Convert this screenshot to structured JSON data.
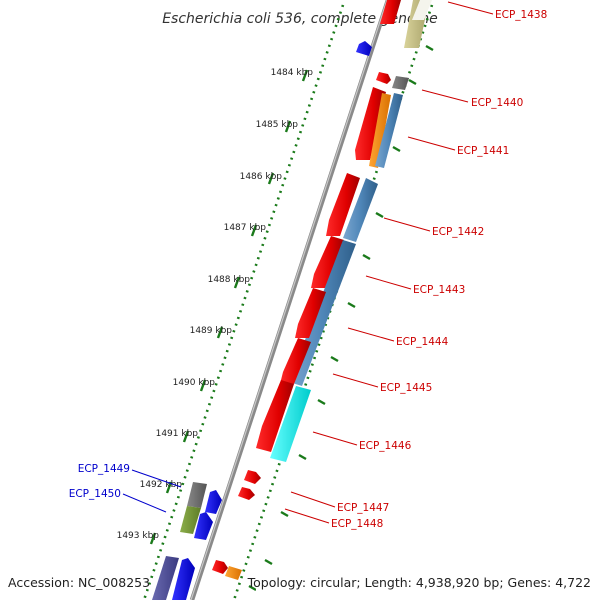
{
  "title": "Escherichia coli 536, complete genome",
  "accession": "Accession: NC_008253",
  "topology": "Topology: circular; Length: 4,938,920 bp; Genes: 4,722",
  "colors": {
    "label_red": "#cc0000",
    "label_blue": "#0000cc",
    "tick_green": "#1a7a1a",
    "backbone": "#8a8a8a"
  },
  "kbp_ticks": [
    "1484 kbp",
    "1485 kbp",
    "1486 kbp",
    "1487 kbp",
    "1488 kbp",
    "1489 kbp",
    "1490 kbp",
    "1491 kbp",
    "1492 kbp",
    "1493 kbp"
  ],
  "genes_right": [
    "ECP_1438",
    "ECP_1440",
    "ECP_1441",
    "ECP_1442",
    "ECP_1443",
    "ECP_1444",
    "ECP_1445",
    "ECP_1446",
    "ECP_1447",
    "ECP_1448"
  ],
  "genes_left": [
    "ECP_1449",
    "ECP_1450"
  ]
}
